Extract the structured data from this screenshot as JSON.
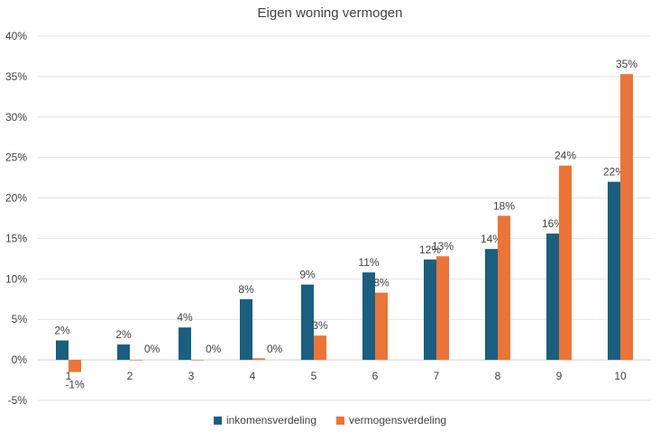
{
  "chart_data": {
    "type": "bar",
    "title": "Eigen woning vermogen",
    "categories": [
      "1",
      "2",
      "3",
      "4",
      "5",
      "6",
      "7",
      "8",
      "9",
      "10"
    ],
    "series": [
      {
        "name": "inkomensverdeling",
        "color": "#1a5f7f",
        "values": [
          2.4,
          1.9,
          4.0,
          7.5,
          9.3,
          10.8,
          12.4,
          13.7,
          15.6,
          22.0
        ],
        "labels": [
          "2%",
          "2%",
          "4%",
          "8%",
          "9%",
          "11%",
          "12%",
          "14%",
          "16%",
          "22%"
        ]
      },
      {
        "name": "vermogensverdeling",
        "color": "#eb7436",
        "values": [
          -1.5,
          0.0,
          0.0,
          0.2,
          3.0,
          8.3,
          12.8,
          17.8,
          24.0,
          35.3
        ],
        "labels": [
          "-1%",
          "0%",
          "0%",
          "0%",
          "3%",
          "8%",
          "13%",
          "18%",
          "24%",
          "35%"
        ]
      }
    ],
    "ylim": [
      -5,
      40
    ],
    "yticks": [
      -5,
      0,
      5,
      10,
      15,
      20,
      25,
      30,
      35,
      40
    ],
    "ytick_labels": [
      "-5%",
      "0%",
      "5%",
      "10%",
      "15%",
      "20%",
      "25%",
      "30%",
      "35%",
      "40%"
    ],
    "xlabel": "",
    "ylabel": "",
    "grid": true,
    "legend_position": "bottom"
  }
}
